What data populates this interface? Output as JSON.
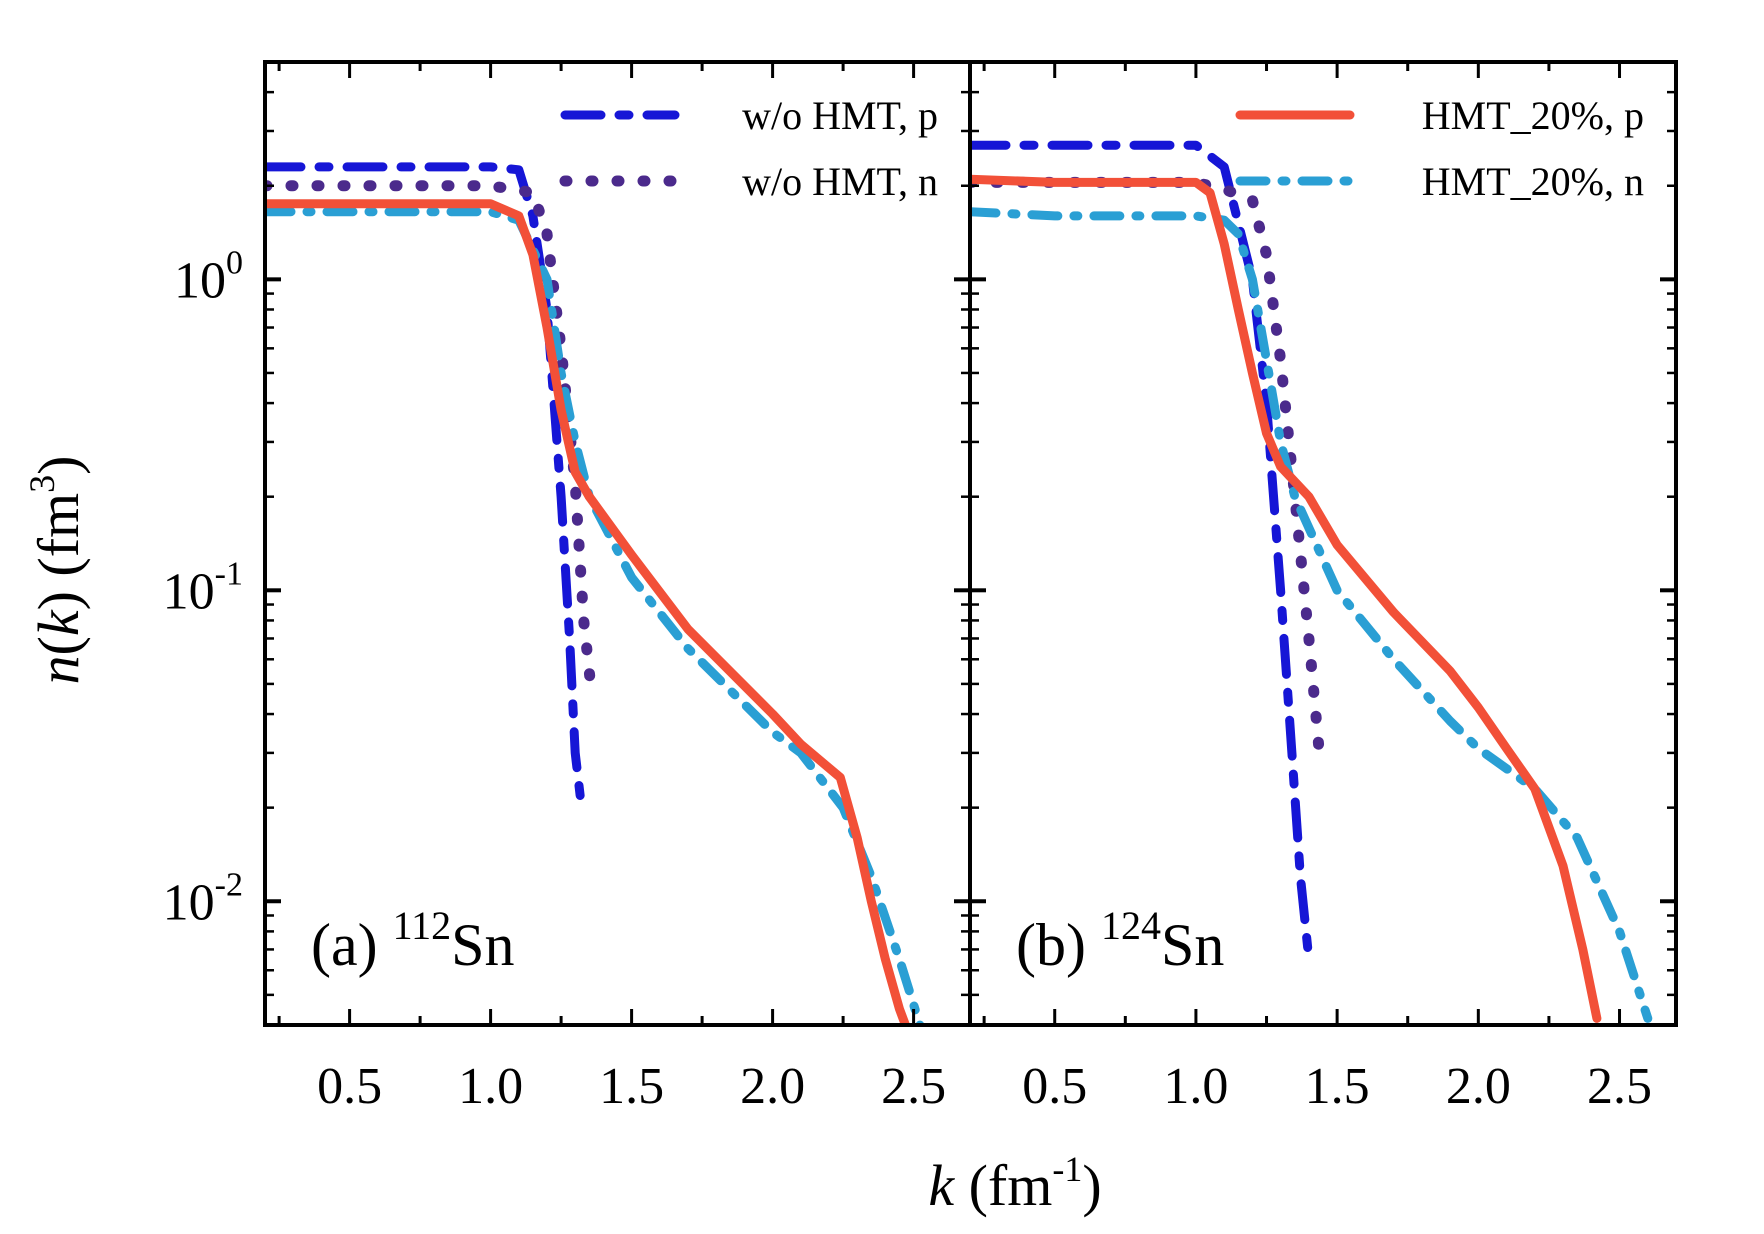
{
  "chart_data": {
    "type": "line",
    "y_scale": "log",
    "ylim": [
      0.004,
      5
    ],
    "xlim": [
      0.2,
      2.7
    ],
    "x_ticks": [
      0.5,
      1.0,
      1.5,
      2.0,
      2.5
    ],
    "x_tick_labels": [
      "0.5",
      "1.0",
      "1.5",
      "2.0",
      "2.5"
    ],
    "y_ticks": [
      {
        "value": 1,
        "base": "10",
        "exp": "0"
      },
      {
        "value": 0.1,
        "base": "10",
        "exp": "-1"
      },
      {
        "value": 0.01,
        "base": "10",
        "exp": "-2"
      }
    ],
    "xlabel": {
      "var": "k",
      "unit_open": " (fm",
      "unit_sup": "-1",
      "unit_close": ")"
    },
    "ylabel": {
      "var": "n",
      "paren_open": "(",
      "var2": "k",
      "paren_close": ")",
      "unit_open": " (fm",
      "unit_sup": "3",
      "unit_close": ")"
    },
    "colors": {
      "p_wo": "#1616d6",
      "n_wo": "#4b2a8c",
      "p_hmt": "#f25038",
      "n_hmt": "#2a9fd4"
    },
    "panels": [
      {
        "label": {
          "text": "(a) ",
          "sup": "112",
          "element": "Sn"
        },
        "legend": [
          {
            "series": "p_wo",
            "label": "w/o HMT, p"
          },
          {
            "series": "n_wo",
            "label": "w/o HMT, n"
          }
        ],
        "series": [
          {
            "key": "p_wo",
            "label": "w/o HMT, p",
            "x": [
              0.2,
              0.5,
              1.0,
              1.1,
              1.15,
              1.2,
              1.25,
              1.28,
              1.3,
              1.32
            ],
            "y": [
              2.3,
              2.3,
              2.3,
              2.25,
              1.6,
              0.8,
              0.2,
              0.07,
              0.03,
              0.021
            ]
          },
          {
            "key": "n_wo",
            "label": "w/o HMT, n",
            "x": [
              0.2,
              0.6,
              1.0,
              1.15,
              1.2,
              1.25,
              1.3,
              1.33,
              1.36
            ],
            "y": [
              2.0,
              2.0,
              2.0,
              1.9,
              1.4,
              0.6,
              0.22,
              0.08,
              0.045
            ]
          },
          {
            "key": "p_hmt",
            "label": "HMT_20%, p",
            "x": [
              0.2,
              0.5,
              1.0,
              1.1,
              1.15,
              1.2,
              1.25,
              1.3,
              1.35,
              1.5,
              1.7,
              2.0,
              2.1,
              2.24,
              2.3,
              2.35,
              2.4,
              2.45,
              2.48
            ],
            "y": [
              1.75,
              1.75,
              1.75,
              1.6,
              1.2,
              0.7,
              0.38,
              0.24,
              0.2,
              0.13,
              0.075,
              0.04,
              0.032,
              0.025,
              0.016,
              0.01,
              0.0065,
              0.0045,
              0.0038
            ]
          },
          {
            "key": "n_hmt",
            "label": "HMT_20%, n",
            "x": [
              0.2,
              0.5,
              1.0,
              1.1,
              1.2,
              1.25,
              1.3,
              1.35,
              1.5,
              1.7,
              2.0,
              2.1,
              2.25,
              2.35,
              2.45,
              2.53
            ],
            "y": [
              1.65,
              1.65,
              1.65,
              1.55,
              1.0,
              0.5,
              0.3,
              0.2,
              0.11,
              0.065,
              0.035,
              0.03,
              0.02,
              0.012,
              0.0065,
              0.0038
            ]
          }
        ]
      },
      {
        "label": {
          "text": "(b) ",
          "sup": "124",
          "element": "Sn"
        },
        "legend": [
          {
            "series": "p_hmt",
            "label": "HMT_20%, p"
          },
          {
            "series": "n_hmt",
            "label": "HMT_20%, n"
          }
        ],
        "series": [
          {
            "key": "p_wo",
            "label": "w/o HMT, p",
            "x": [
              0.2,
              0.5,
              1.0,
              1.1,
              1.2,
              1.25,
              1.3,
              1.34,
              1.37,
              1.4
            ],
            "y": [
              2.7,
              2.7,
              2.7,
              2.3,
              1.0,
              0.4,
              0.1,
              0.03,
              0.012,
              0.0065
            ]
          },
          {
            "key": "n_wo",
            "label": "w/o HMT, n",
            "x": [
              0.2,
              0.5,
              1.0,
              1.1,
              1.2,
              1.25,
              1.3,
              1.35,
              1.4,
              1.44
            ],
            "y": [
              2.05,
              2.05,
              2.05,
              1.95,
              1.8,
              1.2,
              0.55,
              0.2,
              0.07,
              0.028
            ]
          },
          {
            "key": "p_hmt",
            "label": "HMT_20%, p",
            "x": [
              0.2,
              0.5,
              1.0,
              1.05,
              1.1,
              1.15,
              1.2,
              1.25,
              1.3,
              1.4,
              1.5,
              1.7,
              1.9,
              2.0,
              2.1,
              2.2,
              2.3,
              2.37,
              2.42
            ],
            "y": [
              2.1,
              2.05,
              2.05,
              1.9,
              1.3,
              0.8,
              0.5,
              0.32,
              0.25,
              0.2,
              0.14,
              0.085,
              0.055,
              0.042,
              0.031,
              0.023,
              0.013,
              0.007,
              0.0042
            ]
          },
          {
            "key": "n_hmt",
            "label": "HMT_20%, n",
            "x": [
              0.2,
              0.5,
              1.0,
              1.1,
              1.15,
              1.2,
              1.25,
              1.3,
              1.35,
              1.5,
              1.7,
              1.9,
              2.0,
              2.2,
              2.35,
              2.5,
              2.6
            ],
            "y": [
              1.65,
              1.6,
              1.6,
              1.55,
              1.4,
              1.0,
              0.55,
              0.3,
              0.2,
              0.1,
              0.06,
              0.038,
              0.031,
              0.023,
              0.016,
              0.008,
              0.0042
            ]
          }
        ]
      }
    ]
  }
}
